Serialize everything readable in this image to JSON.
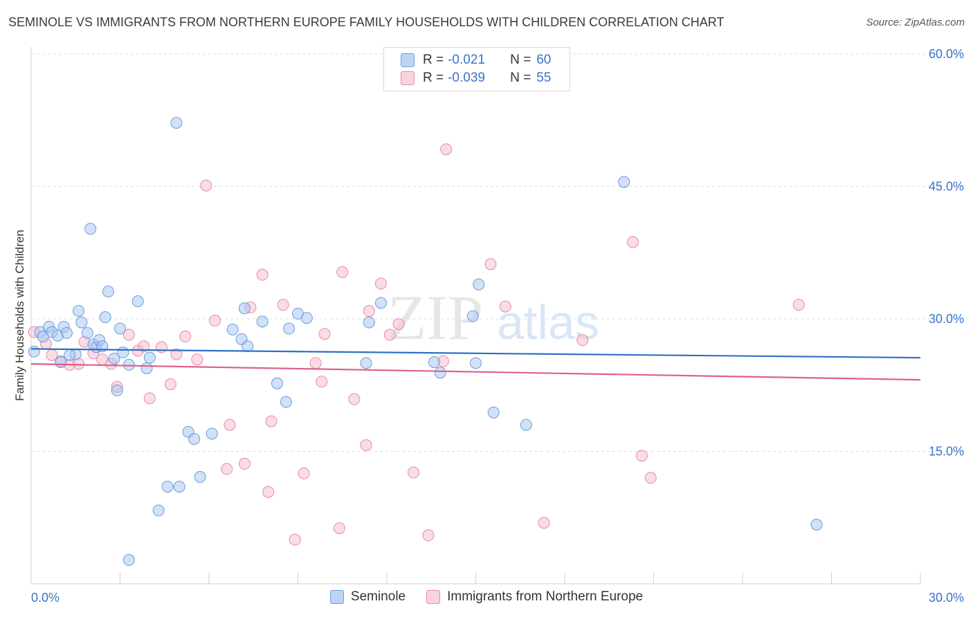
{
  "header": {
    "title": "SEMINOLE VS IMMIGRANTS FROM NORTHERN EUROPE FAMILY HOUSEHOLDS WITH CHILDREN CORRELATION CHART",
    "source": "Source: ZipAtlas.com"
  },
  "legend": {
    "rows": [
      {
        "r_label": "R =",
        "r_value": "-0.021",
        "n_label": "N =",
        "n_value": "60"
      },
      {
        "r_label": "R =",
        "r_value": "-0.039",
        "n_label": "N =",
        "n_value": "55"
      }
    ],
    "series": [
      "Seminole",
      "Immigrants from Northern Europe"
    ]
  },
  "watermark": {
    "zip": "ZIP",
    "atlas": "atlas"
  },
  "colors": {
    "seminole_fill": "#a9c8f2",
    "seminole_stroke": "#6b9bd8",
    "seminole_line": "#2d6fc7",
    "immigrants_fill": "#f6bfd0",
    "immigrants_stroke": "#e58aa7",
    "immigrants_line": "#e0608a",
    "tick_label": "#3b73c8",
    "grid": "#dcdcdc"
  },
  "chart_data": {
    "type": "scatter",
    "title": "SEMINOLE VS IMMIGRANTS FROM NORTHERN EUROPE FAMILY HOUSEHOLDS WITH CHILDREN CORRELATION CHART",
    "xlabel": "",
    "ylabel": "Family Households with Children",
    "xlim": [
      0,
      30
    ],
    "ylim": [
      0,
      60
    ],
    "x_tick_labels": [
      "0.0%",
      "30.0%"
    ],
    "y_ticks": [
      15,
      30,
      45,
      60
    ],
    "y_tick_labels": [
      "15.0%",
      "30.0%",
      "45.0%",
      "60.0%"
    ],
    "grid": true,
    "legend_position": "top-center",
    "series": [
      {
        "name": "Seminole",
        "r": -0.021,
        "n": 60,
        "trend": {
          "x": [
            0,
            30
          ],
          "y": [
            26.6,
            25.6
          ]
        },
        "points": [
          [
            0.1,
            26.3
          ],
          [
            0.3,
            28.5
          ],
          [
            0.4,
            28.0
          ],
          [
            0.6,
            29.1
          ],
          [
            0.7,
            28.5
          ],
          [
            0.9,
            28.1
          ],
          [
            1.0,
            25.1
          ],
          [
            1.1,
            29.1
          ],
          [
            1.2,
            28.4
          ],
          [
            1.5,
            26.0
          ],
          [
            1.6,
            30.9
          ],
          [
            1.7,
            29.6
          ],
          [
            1.9,
            28.4
          ],
          [
            2.0,
            40.2
          ],
          [
            2.1,
            27.1
          ],
          [
            2.2,
            26.8
          ],
          [
            2.3,
            27.6
          ],
          [
            2.5,
            30.2
          ],
          [
            2.6,
            33.1
          ],
          [
            2.8,
            25.5
          ],
          [
            2.9,
            21.9
          ],
          [
            3.0,
            28.9
          ],
          [
            3.1,
            26.2
          ],
          [
            3.3,
            24.8
          ],
          [
            3.6,
            32.0
          ],
          [
            3.9,
            24.4
          ],
          [
            4.0,
            25.6
          ],
          [
            4.3,
            8.3
          ],
          [
            4.6,
            11.0
          ],
          [
            4.9,
            52.2
          ],
          [
            5.0,
            11.0
          ],
          [
            5.3,
            17.2
          ],
          [
            5.5,
            16.4
          ],
          [
            5.7,
            12.1
          ],
          [
            6.1,
            17.0
          ],
          [
            6.8,
            28.8
          ],
          [
            7.1,
            27.7
          ],
          [
            7.2,
            31.2
          ],
          [
            7.3,
            26.9
          ],
          [
            7.8,
            29.7
          ],
          [
            8.3,
            22.7
          ],
          [
            8.6,
            20.6
          ],
          [
            8.7,
            28.9
          ],
          [
            9.0,
            30.6
          ],
          [
            9.3,
            30.1
          ],
          [
            11.4,
            29.6
          ],
          [
            11.3,
            25.0
          ],
          [
            11.8,
            31.8
          ],
          [
            13.6,
            25.1
          ],
          [
            13.8,
            23.9
          ],
          [
            14.9,
            30.3
          ],
          [
            15.1,
            33.9
          ],
          [
            15.0,
            25.0
          ],
          [
            15.6,
            19.4
          ],
          [
            16.7,
            18.0
          ],
          [
            20.0,
            45.5
          ],
          [
            26.5,
            6.7
          ],
          [
            3.3,
            2.7
          ],
          [
            1.3,
            25.9
          ],
          [
            2.4,
            26.9
          ]
        ]
      },
      {
        "name": "Immigrants from Northern Europe",
        "r": -0.039,
        "n": 55,
        "trend": {
          "x": [
            0,
            30
          ],
          "y": [
            24.9,
            23.1
          ]
        },
        "points": [
          [
            0.1,
            28.5
          ],
          [
            0.5,
            27.2
          ],
          [
            0.7,
            25.9
          ],
          [
            1.0,
            25.2
          ],
          [
            1.3,
            24.8
          ],
          [
            1.6,
            24.9
          ],
          [
            1.8,
            27.4
          ],
          [
            2.1,
            26.1
          ],
          [
            2.4,
            25.4
          ],
          [
            2.7,
            24.9
          ],
          [
            2.9,
            22.3
          ],
          [
            3.3,
            28.2
          ],
          [
            3.6,
            26.4
          ],
          [
            3.8,
            26.9
          ],
          [
            4.0,
            21.0
          ],
          [
            4.4,
            26.8
          ],
          [
            4.7,
            22.6
          ],
          [
            4.9,
            26.0
          ],
          [
            5.2,
            28.0
          ],
          [
            5.6,
            25.4
          ],
          [
            5.9,
            45.1
          ],
          [
            6.2,
            29.8
          ],
          [
            6.6,
            13.0
          ],
          [
            6.7,
            18.0
          ],
          [
            7.2,
            13.6
          ],
          [
            7.4,
            31.3
          ],
          [
            7.8,
            35.0
          ],
          [
            8.0,
            10.4
          ],
          [
            8.1,
            18.4
          ],
          [
            8.5,
            31.6
          ],
          [
            8.9,
            5.0
          ],
          [
            9.2,
            12.5
          ],
          [
            9.6,
            25.0
          ],
          [
            9.8,
            22.9
          ],
          [
            9.9,
            28.3
          ],
          [
            10.4,
            6.3
          ],
          [
            10.5,
            35.3
          ],
          [
            10.9,
            20.9
          ],
          [
            11.3,
            15.7
          ],
          [
            11.4,
            30.9
          ],
          [
            11.8,
            34.0
          ],
          [
            12.1,
            28.2
          ],
          [
            12.4,
            29.4
          ],
          [
            12.9,
            12.6
          ],
          [
            13.4,
            5.5
          ],
          [
            13.9,
            25.2
          ],
          [
            14.0,
            49.2
          ],
          [
            15.5,
            36.2
          ],
          [
            16.0,
            31.4
          ],
          [
            17.3,
            6.9
          ],
          [
            18.6,
            27.6
          ],
          [
            20.3,
            38.7
          ],
          [
            20.6,
            14.5
          ],
          [
            20.9,
            12.0
          ],
          [
            25.9,
            31.6
          ]
        ]
      }
    ]
  }
}
